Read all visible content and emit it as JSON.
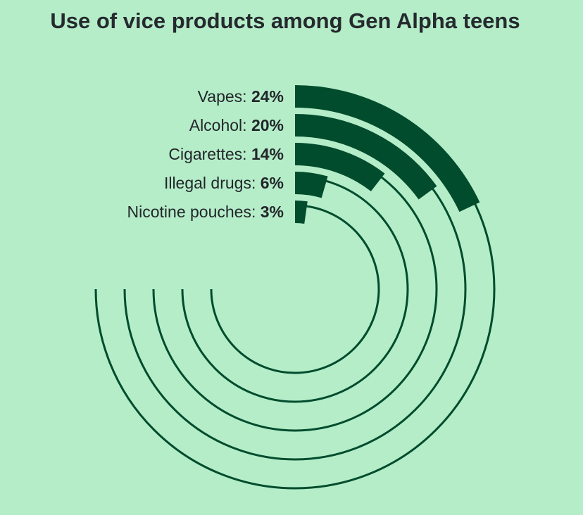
{
  "title": "Use of vice products among Gen Alpha teens",
  "colors": {
    "background": "#b5edc9",
    "bar": "#004c2c",
    "track": "#004c2c",
    "text": "#22262a"
  },
  "chart_data": {
    "type": "radial-bar",
    "title": "Use of vice products among Gen Alpha teens",
    "unit": "%",
    "max": 100,
    "categories": [
      "Vapes",
      "Alcohol",
      "Cigarettes",
      "Illegal drugs",
      "Nicotine pouches"
    ],
    "values": [
      24,
      20,
      14,
      6,
      3
    ],
    "labels": [
      "Vapes: ",
      "Alcohol: ",
      "Cigarettes: ",
      "Illegal drugs: ",
      "Nicotine pouches: "
    ],
    "value_labels": [
      "24%",
      "20%",
      "14%",
      "6%",
      "3%"
    ]
  }
}
